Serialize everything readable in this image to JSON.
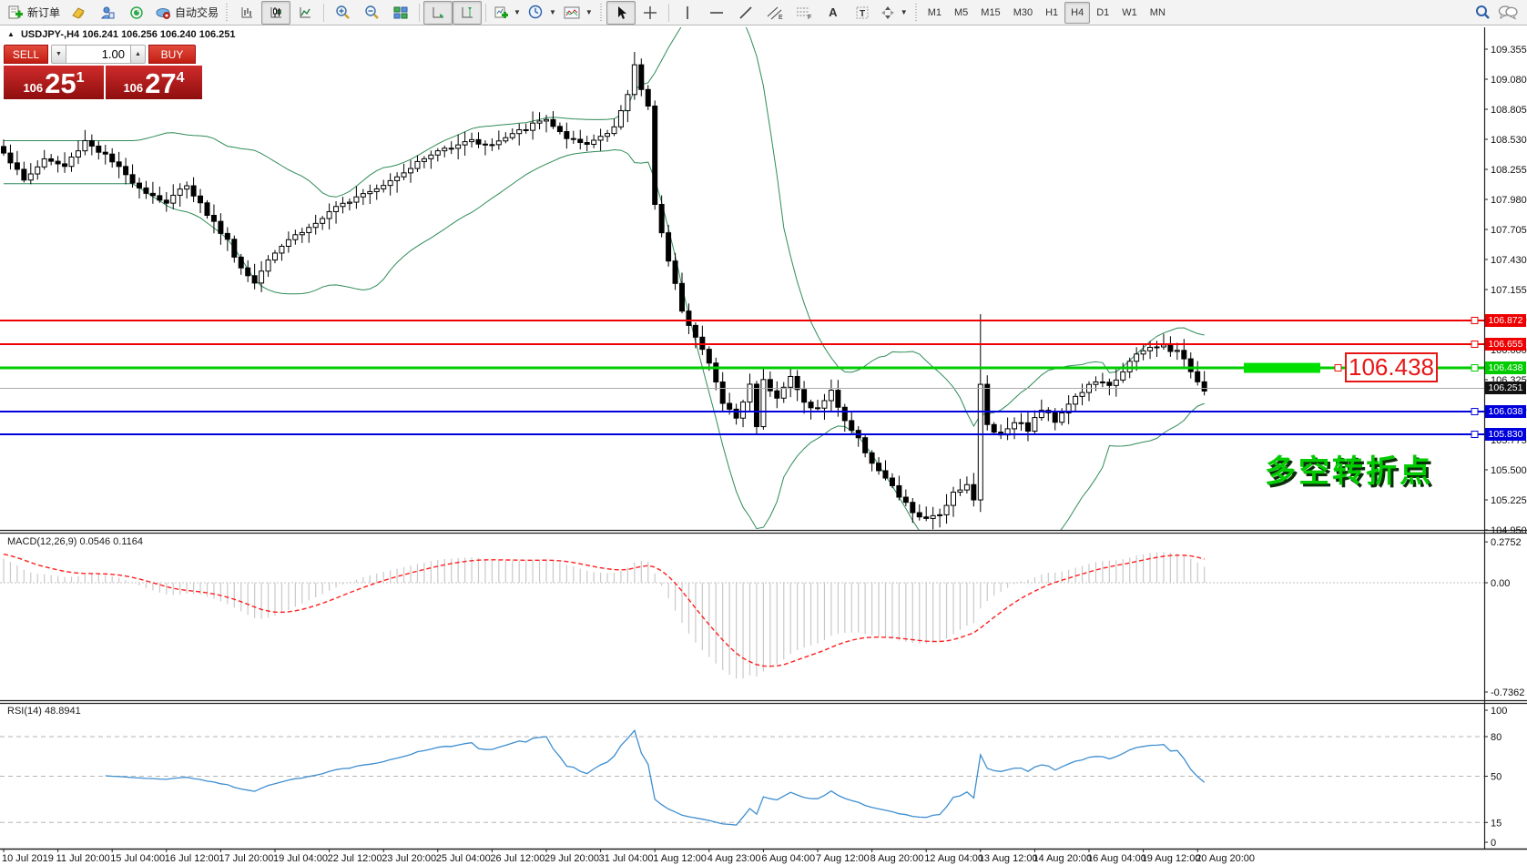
{
  "toolbar": {
    "new_order_label": "新订单",
    "auto_trading_label": "自动交易",
    "timeframes": [
      "M1",
      "M5",
      "M15",
      "M30",
      "H1",
      "H4",
      "D1",
      "W1",
      "MN"
    ],
    "active_timeframe": "H4"
  },
  "chart_header": {
    "symbol_title": "USDJPY-,H4",
    "ohlc": "106.241 106.256 106.240 106.251"
  },
  "trade_panel": {
    "sell_label": "SELL",
    "buy_label": "BUY",
    "volume": "1.00",
    "sell_price_small": "106",
    "sell_price_big": "25",
    "sell_price_sup": "1",
    "buy_price_small": "106",
    "buy_price_big": "27",
    "buy_price_sup": "4"
  },
  "annotations": {
    "price_callout": "106.438",
    "cn_note": "多空转折点"
  },
  "indicators": {
    "macd_label": "MACD(12,26,9) 0.0546 0.1164",
    "rsi_label": "RSI(14) 48.8941"
  },
  "levels": [
    {
      "price": 106.872,
      "label": "106.872",
      "color": "#ee0000",
      "width": 2
    },
    {
      "price": 106.655,
      "label": "106.655",
      "color": "#ee0000",
      "width": 2
    },
    {
      "price": 106.438,
      "label": "106.438",
      "color": "#00cc00",
      "width": 3,
      "highlight": true
    },
    {
      "price": 106.251,
      "label": "106.251",
      "color": "#111111",
      "width": 1,
      "current": true
    },
    {
      "price": 106.038,
      "label": "106.038",
      "color": "#0000dd",
      "width": 2
    },
    {
      "price": 105.83,
      "label": "105.830",
      "color": "#0000dd",
      "width": 2
    }
  ],
  "axis": {
    "price_labels": [
      "109.355",
      "109.080",
      "108.805",
      "108.530",
      "108.255",
      "107.980",
      "107.705",
      "107.430",
      "107.155",
      "106.880",
      "106.600",
      "106.325",
      "106.050",
      "105.775",
      "105.500",
      "105.225",
      "104.950"
    ],
    "macd_ticks": [
      0.2752,
      0,
      -0.7362
    ],
    "macd_tick_labels": [
      "0.2752",
      "0.00",
      "-0.7362"
    ],
    "rsi_ticks": [
      100,
      80,
      50,
      15,
      0
    ],
    "time_labels": [
      "10 Jul 2019",
      "11 Jul 20:00",
      "15 Jul 04:00",
      "16 Jul 12:00",
      "17 Jul 20:00",
      "19 Jul 04:00",
      "22 Jul 12:00",
      "23 Jul 20:00",
      "25 Jul 04:00",
      "26 Jul 12:00",
      "29 Jul 20:00",
      "31 Jul 04:00",
      "1 Aug 12:00",
      "4 Aug 23:00",
      "6 Aug 04:00",
      "7 Aug 12:00",
      "8 Aug 20:00",
      "12 Aug 04:00",
      "13 Aug 12:00",
      "14 Aug 20:00",
      "16 Aug 04:00",
      "19 Aug 12:00",
      "20 Aug 20:00"
    ]
  },
  "chart_data": {
    "type": "candlestick",
    "symbol": "USDJPY",
    "timeframe": "H4",
    "visible_price_range": [
      104.95,
      109.49
    ],
    "candle_count": 178,
    "candles_per_time_label": 8,
    "close_anchors": [
      [
        0,
        108.42
      ],
      [
        3,
        108.15
      ],
      [
        6,
        108.35
      ],
      [
        9,
        108.28
      ],
      [
        12,
        108.52
      ],
      [
        15,
        108.38
      ],
      [
        18,
        108.2
      ],
      [
        21,
        108.05
      ],
      [
        24,
        107.95
      ],
      [
        27,
        108.12
      ],
      [
        30,
        107.85
      ],
      [
        33,
        107.6
      ],
      [
        35,
        107.35
      ],
      [
        37,
        107.22
      ],
      [
        39,
        107.45
      ],
      [
        42,
        107.62
      ],
      [
        45,
        107.72
      ],
      [
        48,
        107.85
      ],
      [
        52,
        108.02
      ],
      [
        56,
        108.12
      ],
      [
        60,
        108.28
      ],
      [
        64,
        108.42
      ],
      [
        68,
        108.52
      ],
      [
        72,
        108.48
      ],
      [
        76,
        108.6
      ],
      [
        80,
        108.72
      ],
      [
        83,
        108.52
      ],
      [
        86,
        108.48
      ],
      [
        90,
        108.65
      ],
      [
        92,
        108.92
      ],
      [
        93,
        109.22
      ],
      [
        94,
        108.98
      ],
      [
        95,
        108.85
      ],
      [
        96,
        107.95
      ],
      [
        98,
        107.4
      ],
      [
        100,
        106.98
      ],
      [
        102,
        106.72
      ],
      [
        104,
        106.48
      ],
      [
        106,
        106.12
      ],
      [
        108,
        105.98
      ],
      [
        110,
        106.28
      ],
      [
        111,
        105.92
      ],
      [
        112,
        106.32
      ],
      [
        114,
        106.18
      ],
      [
        116,
        106.35
      ],
      [
        118,
        106.12
      ],
      [
        120,
        106.06
      ],
      [
        122,
        106.22
      ],
      [
        124,
        105.96
      ],
      [
        126,
        105.78
      ],
      [
        128,
        105.58
      ],
      [
        130,
        105.42
      ],
      [
        132,
        105.26
      ],
      [
        134,
        105.12
      ],
      [
        136,
        105.04
      ],
      [
        138,
        105.1
      ],
      [
        140,
        105.3
      ],
      [
        142,
        105.38
      ],
      [
        143,
        105.22
      ],
      [
        144,
        106.28
      ],
      [
        145,
        105.92
      ],
      [
        147,
        105.82
      ],
      [
        149,
        105.96
      ],
      [
        151,
        105.88
      ],
      [
        153,
        106.06
      ],
      [
        155,
        105.96
      ],
      [
        157,
        106.12
      ],
      [
        159,
        106.22
      ],
      [
        161,
        106.32
      ],
      [
        163,
        106.26
      ],
      [
        165,
        106.42
      ],
      [
        167,
        106.55
      ],
      [
        169,
        106.62
      ],
      [
        171,
        106.64
      ],
      [
        173,
        106.58
      ],
      [
        175,
        106.42
      ],
      [
        176,
        106.32
      ],
      [
        177,
        106.25
      ]
    ],
    "wick_overrides": {
      "93": {
        "h": 109.33
      },
      "137": {
        "l": 104.96
      },
      "144": {
        "h": 106.93,
        "l": 105.12
      }
    },
    "bollinger": {
      "period": 20,
      "deviation": 2,
      "color": "#2e8b57"
    },
    "macd": {
      "fast": 12,
      "slow": 26,
      "signal": 9,
      "display_range": [
        -0.7362,
        0.2752
      ],
      "histogram_color": "#c9c9c9",
      "signal_color": "#ff2020",
      "current_main": 0.0546,
      "current_signal": 0.1164
    },
    "rsi": {
      "period": 14,
      "levels": [
        80,
        50,
        15
      ],
      "range": [
        0,
        100
      ],
      "line_color": "#3e8ed0",
      "current": 48.8941
    }
  }
}
